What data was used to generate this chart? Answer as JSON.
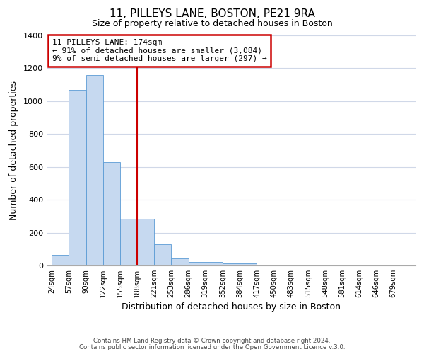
{
  "title": "11, PILLEYS LANE, BOSTON, PE21 9RA",
  "subtitle": "Size of property relative to detached houses in Boston",
  "xlabel": "Distribution of detached houses by size in Boston",
  "ylabel": "Number of detached properties",
  "bar_labels": [
    "24sqm",
    "57sqm",
    "90sqm",
    "122sqm",
    "155sqm",
    "188sqm",
    "221sqm",
    "253sqm",
    "286sqm",
    "319sqm",
    "352sqm",
    "384sqm",
    "417sqm",
    "450sqm",
    "483sqm",
    "515sqm",
    "548sqm",
    "581sqm",
    "614sqm",
    "646sqm",
    "679sqm"
  ],
  "bar_values": [
    65,
    1070,
    1160,
    630,
    285,
    285,
    130,
    45,
    20,
    20,
    15,
    15,
    0,
    0,
    0,
    0,
    0,
    0,
    0,
    0,
    0
  ],
  "bar_color": "#c6d9f0",
  "bar_edge_color": "#5b9bd5",
  "property_line_label": "11 PILLEYS LANE: 174sqm",
  "annotation_line1": "← 91% of detached houses are smaller (3,084)",
  "annotation_line2": "9% of semi-detached houses are larger (297) →",
  "annotation_box_color": "#ffffff",
  "annotation_box_edge": "#cc0000",
  "vline_color": "#cc0000",
  "vline_position": 5,
  "ylim": [
    0,
    1400
  ],
  "yticks": [
    0,
    200,
    400,
    600,
    800,
    1000,
    1200,
    1400
  ],
  "footnote1": "Contains HM Land Registry data © Crown copyright and database right 2024.",
  "footnote2": "Contains public sector information licensed under the Open Government Licence v.3.0.",
  "background_color": "#ffffff",
  "grid_color": "#d0d8e8"
}
